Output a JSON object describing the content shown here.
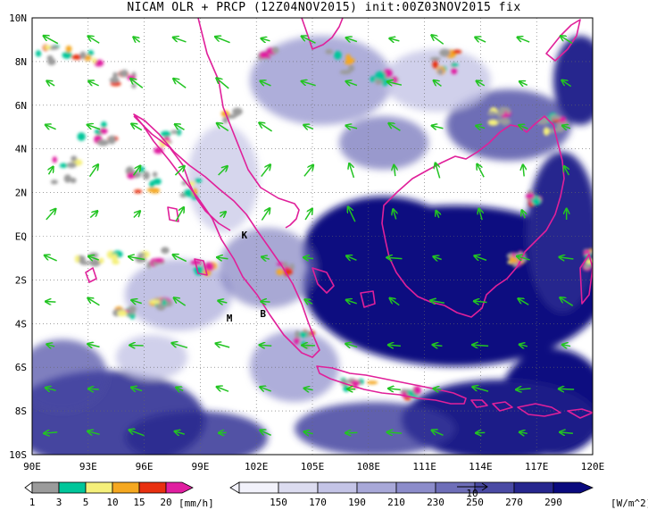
{
  "title": "NICAM OLR + PRCP (12Z04NOV2015) init:00Z03NOV2015 fix",
  "lat_labels": [
    "10N",
    "8N",
    "6N",
    "4N",
    "2N",
    "EQ",
    "2S",
    "4S",
    "6S",
    "8S",
    "10S"
  ],
  "lon_labels": [
    "90E",
    "93E",
    "96E",
    "99E",
    "102E",
    "105E",
    "108E",
    "111E",
    "114E",
    "117E",
    "120E"
  ],
  "map_extent": {
    "lon_min": 90,
    "lon_max": 120,
    "lat_min": -10,
    "lat_max": 10
  },
  "station_markers": [
    {
      "label": "K",
      "lon": 101.2,
      "lat": -0.1
    },
    {
      "label": "M",
      "lon": 100.4,
      "lat": -3.9
    },
    {
      "label": "B",
      "lon": 102.2,
      "lat": -3.7
    }
  ],
  "precip_colorbar": {
    "levels": [
      "1",
      "3",
      "5",
      "10",
      "15",
      "20"
    ],
    "unit": "[mm/h]",
    "colors": [
      "#9b9b9b",
      "#00c69a",
      "#f5f07a",
      "#f5a820",
      "#e83010",
      "#e01ea0"
    ]
  },
  "olr_colorbar": {
    "levels": [
      "150",
      "170",
      "190",
      "210",
      "230",
      "250",
      "270",
      "290"
    ],
    "unit": "[W/m^2]",
    "colors": [
      "#f2f2fb",
      "#dcdcf0",
      "#c4c4e6",
      "#a8a8d8",
      "#8c8cca",
      "#6e6eb8",
      "#4a4aa4",
      "#26268e",
      "#0a0a7e"
    ]
  },
  "vector_ref_label": "10",
  "colors": {
    "coast": "#e0209a",
    "wind": "#22c422",
    "ocean_deep": "#0c0c80",
    "grid": "#555555"
  }
}
